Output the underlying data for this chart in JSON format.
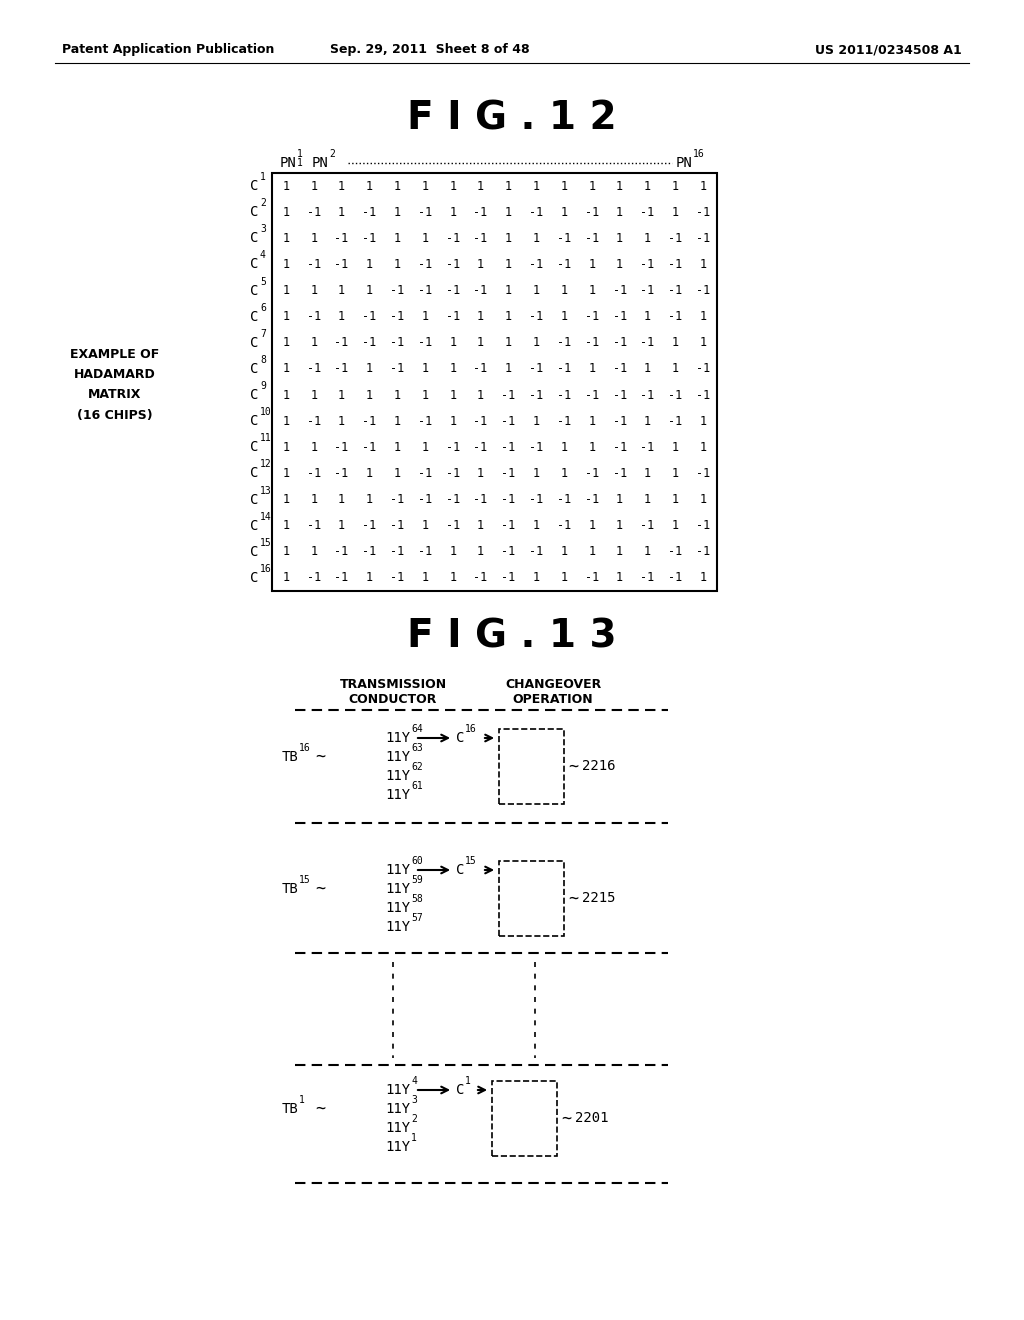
{
  "header_left": "Patent Application Publication",
  "header_mid": "Sep. 29, 2011  Sheet 8 of 48",
  "header_right": "US 2011/0234508 A1",
  "fig12_title": "F I G . 1 2",
  "fig13_title": "F I G . 1 3",
  "matrix": [
    [
      1,
      1,
      1,
      1,
      1,
      1,
      1,
      1,
      1,
      1,
      1,
      1,
      1,
      1,
      1,
      1
    ],
    [
      1,
      -1,
      1,
      -1,
      1,
      -1,
      1,
      -1,
      1,
      -1,
      1,
      -1,
      1,
      -1,
      1,
      -1
    ],
    [
      1,
      1,
      -1,
      -1,
      1,
      1,
      -1,
      -1,
      1,
      1,
      -1,
      -1,
      1,
      1,
      -1,
      -1
    ],
    [
      1,
      -1,
      -1,
      1,
      1,
      -1,
      -1,
      1,
      1,
      -1,
      -1,
      1,
      1,
      -1,
      -1,
      1
    ],
    [
      1,
      1,
      1,
      1,
      -1,
      -1,
      -1,
      -1,
      1,
      1,
      1,
      1,
      -1,
      -1,
      -1,
      -1
    ],
    [
      1,
      -1,
      1,
      -1,
      -1,
      1,
      -1,
      1,
      1,
      -1,
      1,
      -1,
      -1,
      1,
      -1,
      1
    ],
    [
      1,
      1,
      -1,
      -1,
      -1,
      -1,
      1,
      1,
      1,
      1,
      -1,
      -1,
      -1,
      -1,
      1,
      1
    ],
    [
      1,
      -1,
      -1,
      1,
      -1,
      1,
      1,
      -1,
      1,
      -1,
      -1,
      1,
      -1,
      1,
      1,
      -1
    ],
    [
      1,
      1,
      1,
      1,
      1,
      1,
      1,
      1,
      -1,
      -1,
      -1,
      -1,
      -1,
      -1,
      -1,
      -1
    ],
    [
      1,
      -1,
      1,
      -1,
      1,
      -1,
      1,
      -1,
      -1,
      1,
      -1,
      1,
      -1,
      1,
      -1,
      1
    ],
    [
      1,
      1,
      -1,
      -1,
      1,
      1,
      -1,
      -1,
      -1,
      -1,
      1,
      1,
      -1,
      -1,
      1,
      1
    ],
    [
      1,
      -1,
      -1,
      1,
      1,
      -1,
      -1,
      1,
      -1,
      1,
      1,
      -1,
      -1,
      1,
      1,
      -1
    ],
    [
      1,
      1,
      1,
      1,
      -1,
      -1,
      -1,
      -1,
      -1,
      -1,
      -1,
      -1,
      1,
      1,
      1,
      1
    ],
    [
      1,
      -1,
      1,
      -1,
      -1,
      1,
      -1,
      1,
      -1,
      1,
      -1,
      1,
      1,
      -1,
      1,
      -1
    ],
    [
      1,
      1,
      -1,
      -1,
      -1,
      -1,
      1,
      1,
      -1,
      -1,
      1,
      1,
      1,
      1,
      -1,
      -1
    ],
    [
      1,
      -1,
      -1,
      1,
      -1,
      1,
      1,
      -1,
      -1,
      1,
      1,
      -1,
      1,
      -1,
      -1,
      1
    ]
  ],
  "side_label_line1": "EXAMPLE OF",
  "side_label_line2": "HADAMARD",
  "side_label_line3": "MATRIX",
  "side_label_line4": "(16 CHIPS)",
  "groups": [
    {
      "tb_label_base": "TB",
      "tb_label_sub": "16",
      "y_labels": [
        [
          "11Y",
          "64"
        ],
        [
          "11Y",
          "63"
        ],
        [
          "11Y",
          "62"
        ],
        [
          "11Y",
          "61"
        ]
      ],
      "c_label_sub": "16",
      "box_label": "2216"
    },
    {
      "tb_label_base": "TB",
      "tb_label_sub": "15",
      "y_labels": [
        [
          "11Y",
          "60"
        ],
        [
          "11Y",
          "59"
        ],
        [
          "11Y",
          "58"
        ],
        [
          "11Y",
          "57"
        ]
      ],
      "c_label_sub": "15",
      "box_label": "2215"
    },
    {
      "tb_label_base": "TB",
      "tb_label_sub": "1",
      "y_labels": [
        [
          "11Y",
          "4"
        ],
        [
          "11Y",
          "3"
        ],
        [
          "11Y",
          "2"
        ],
        [
          "11Y",
          "1"
        ]
      ],
      "c_label_sub": "1",
      "box_label": "2201"
    }
  ]
}
